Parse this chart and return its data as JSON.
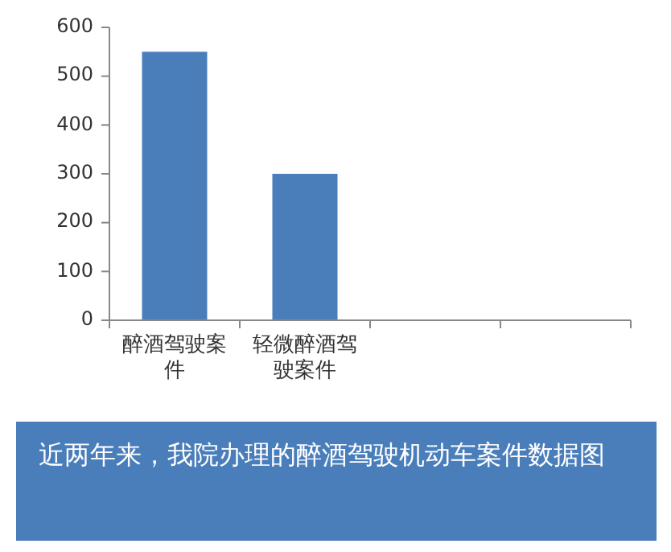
{
  "chart_data": {
    "type": "bar",
    "title": "近两年来，我院办理的醉酒驾驶机动车案件数据图",
    "categories": [
      "醉酒驾驶案件",
      "轻微醉酒驾驶案件",
      null,
      null
    ],
    "values": [
      550,
      300,
      null,
      null
    ],
    "color": "#4a7ebb",
    "ylim": [
      0,
      600
    ],
    "yticks": [
      0,
      100,
      200,
      300,
      400,
      500,
      600
    ]
  }
}
